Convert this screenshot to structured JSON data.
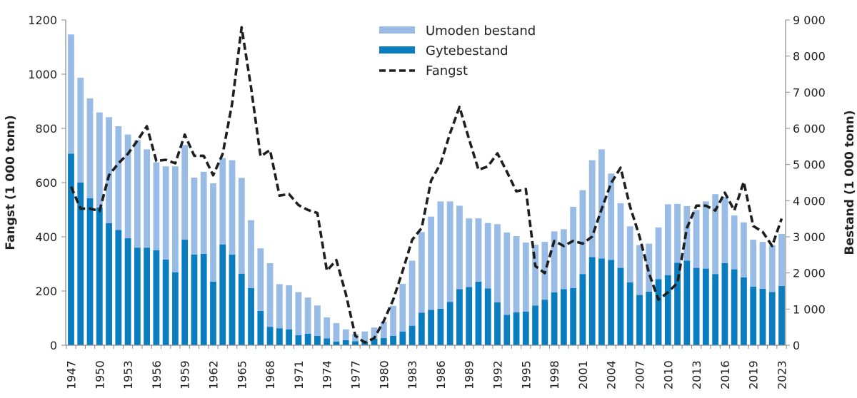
{
  "chart_data": {
    "type": "bar+line",
    "ylabel_left": "Fangst (1 000 tonn)",
    "ylabel_right": "Bestand (1 000 tonn)",
    "ylim_left": [
      0,
      1200
    ],
    "ylim_right": [
      0,
      9000
    ],
    "yticks_left": [
      "0",
      "200",
      "400",
      "600",
      "800",
      "1000",
      "1200"
    ],
    "yticks_right": [
      "0",
      "1 000",
      "2 000",
      "3 000",
      "4 000",
      "5 000",
      "6 000",
      "7 000",
      "8 000",
      "9 000"
    ],
    "x_tick_labels": [
      "1947",
      "1950",
      "1953",
      "1956",
      "1959",
      "1962",
      "1965",
      "1968",
      "1971",
      "1974",
      "1977",
      "1980",
      "1983",
      "1986",
      "1989",
      "1992",
      "1995",
      "1998",
      "2001",
      "2004",
      "2007",
      "2010",
      "2013",
      "2016",
      "2019",
      "2023"
    ],
    "x_tick_bar_index": [
      0,
      3,
      6,
      9,
      12,
      15,
      18,
      21,
      24,
      27,
      30,
      33,
      36,
      39,
      42,
      45,
      48,
      51,
      54,
      57,
      60,
      63,
      66,
      69,
      72,
      75
    ],
    "years": [
      1947,
      1948,
      1949,
      1950,
      1951,
      1952,
      1953,
      1954,
      1955,
      1956,
      1957,
      1958,
      1959,
      1960,
      1961,
      1962,
      1963,
      1964,
      1965,
      1966,
      1967,
      1968,
      1969,
      1970,
      1971,
      1972,
      1973,
      1974,
      1975,
      1976,
      1977,
      1978,
      1979,
      1980,
      1981,
      1982,
      1983,
      1984,
      1985,
      1986,
      1987,
      1988,
      1989,
      1990,
      1991,
      1992,
      1993,
      1994,
      1995,
      1996,
      1997,
      1998,
      1999,
      2000,
      2001,
      2002,
      2003,
      2004,
      2005,
      2006,
      2007,
      2008,
      2009,
      2010,
      2011,
      2012,
      2013,
      2014,
      2015,
      2016,
      2017,
      2018,
      2019,
      2020,
      2021,
      2023
    ],
    "legend_position": "top-center",
    "grid": false,
    "series": [
      {
        "name": "Gytebestand",
        "type": "bar-stacked",
        "axis": "right",
        "color": "#0a7dc1",
        "values": [
          5300,
          4500,
          4070,
          3810,
          3380,
          3190,
          2960,
          2700,
          2700,
          2630,
          2370,
          2020,
          2920,
          2510,
          2530,
          1760,
          2790,
          2510,
          1980,
          1580,
          950,
          510,
          470,
          440,
          280,
          320,
          260,
          190,
          100,
          140,
          110,
          100,
          180,
          200,
          260,
          380,
          540,
          900,
          980,
          1010,
          1200,
          1550,
          1610,
          1760,
          1570,
          1190,
          840,
          910,
          930,
          1100,
          1260,
          1460,
          1550,
          1580,
          1970,
          2440,
          2400,
          2360,
          2140,
          1740,
          1390,
          1480,
          1830,
          1940,
          2280,
          2340,
          2140,
          2120,
          1970,
          2270,
          2100,
          1880,
          1620,
          1560,
          1470,
          1640
        ]
      },
      {
        "name": "Umoden bestand",
        "type": "bar-stacked",
        "axis": "right",
        "color": "#98bce6",
        "values": [
          3300,
          2900,
          2760,
          2630,
          2930,
          2870,
          2870,
          2980,
          2720,
          2430,
          2580,
          2930,
          2620,
          2130,
          2270,
          2720,
          2390,
          2610,
          2650,
          1880,
          1730,
          1760,
          1220,
          1220,
          1190,
          1000,
          840,
          580,
          510,
          300,
          200,
          280,
          310,
          450,
          830,
          1320,
          1800,
          2230,
          2580,
          2970,
          2780,
          2310,
          1900,
          1750,
          1810,
          2160,
          2280,
          2110,
          1910,
          1680,
          1600,
          1690,
          1660,
          2250,
          2320,
          2680,
          3020,
          2390,
          1790,
          1550,
          1380,
          1330,
          1430,
          1960,
          1630,
          1510,
          1600,
          1860,
          2210,
          1830,
          1490,
          1520,
          1300,
          1300,
          1300,
          1440
        ]
      },
      {
        "name": "Fangst",
        "type": "line-dashed",
        "axis": "left",
        "color": "#1e1e1e",
        "values": [
          585,
          504,
          504,
          495,
          627,
          671,
          706,
          755,
          808,
          680,
          684,
          671,
          777,
          699,
          699,
          627,
          706,
          891,
          1173,
          950,
          697,
          720,
          552,
          558,
          517,
          499,
          488,
          275,
          314,
          190,
          35,
          10,
          26,
          89,
          168,
          274,
          389,
          432,
          607,
          670,
          782,
          879,
          761,
          647,
          660,
          708,
          640,
          568,
          576,
          292,
          266,
          385,
          366,
          385,
          375,
          401,
          502,
          598,
          655,
          512,
          401,
          265,
          168,
          195,
          230,
          432,
          515,
          515,
          497,
          563,
          497,
          603,
          440,
          418,
          366,
          467
        ]
      }
    ]
  },
  "legend": {
    "umoden": "Umoden bestand",
    "gyte": "Gytebestand",
    "fangst": "Fangst"
  }
}
